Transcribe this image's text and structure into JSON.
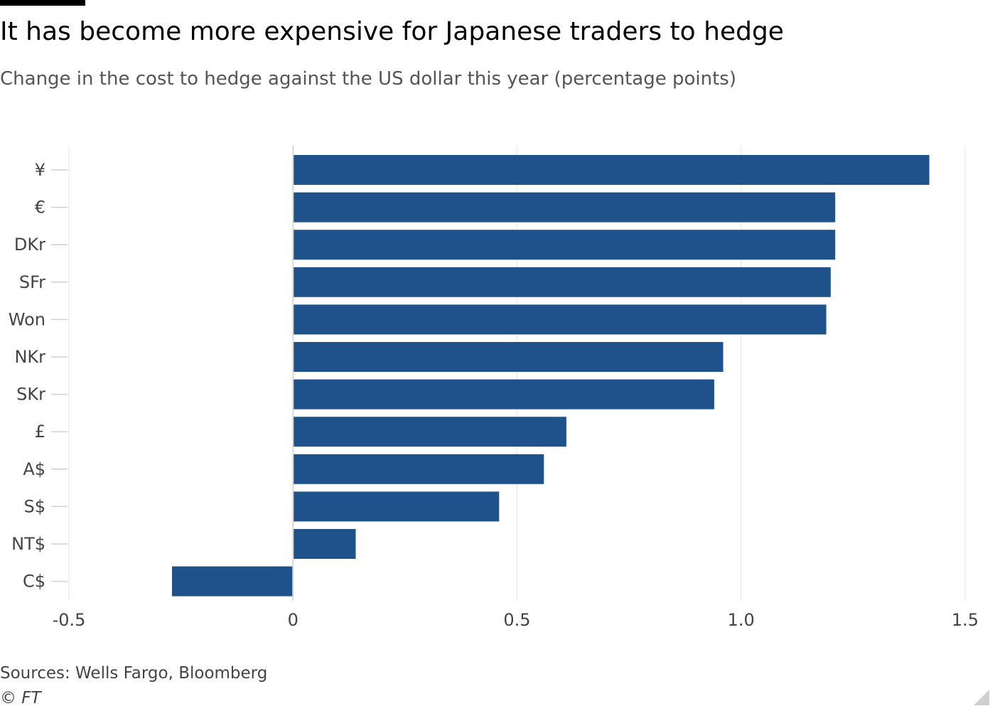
{
  "header": {
    "title": "It has become more expensive for Japanese traders to hedge",
    "subtitle": "Change in the cost to hedge against the US dollar this year (percentage points)"
  },
  "footer": {
    "source": "Sources: Wells Fargo, Bloomberg",
    "credit": "© FT"
  },
  "colors": {
    "bar": "#1f528a",
    "grid": "#e6e6e6",
    "zero_line": "#d0d0d0",
    "tick_label": "#444444"
  },
  "chart_data": {
    "type": "bar",
    "orientation": "horizontal",
    "title": "It has become more expensive for Japanese traders to hedge",
    "subtitle": "Change in the cost to hedge against the US dollar this year (percentage points)",
    "xlabel": "",
    "ylabel": "",
    "xlim": [
      -0.5,
      1.5
    ],
    "xticks": [
      -0.5,
      0,
      0.5,
      1.0,
      1.5
    ],
    "xtick_labels": [
      "-0.5",
      "0",
      "0.5",
      "1.0",
      "1.5"
    ],
    "grid": true,
    "categories": [
      "¥",
      "€",
      "DKr",
      "SFr",
      "Won",
      "NKr",
      "SKr",
      "£",
      "A$",
      "S$",
      "NT$",
      "C$"
    ],
    "values": [
      1.42,
      1.21,
      1.21,
      1.2,
      1.19,
      0.96,
      0.94,
      0.61,
      0.56,
      0.46,
      0.14,
      -0.27
    ]
  }
}
